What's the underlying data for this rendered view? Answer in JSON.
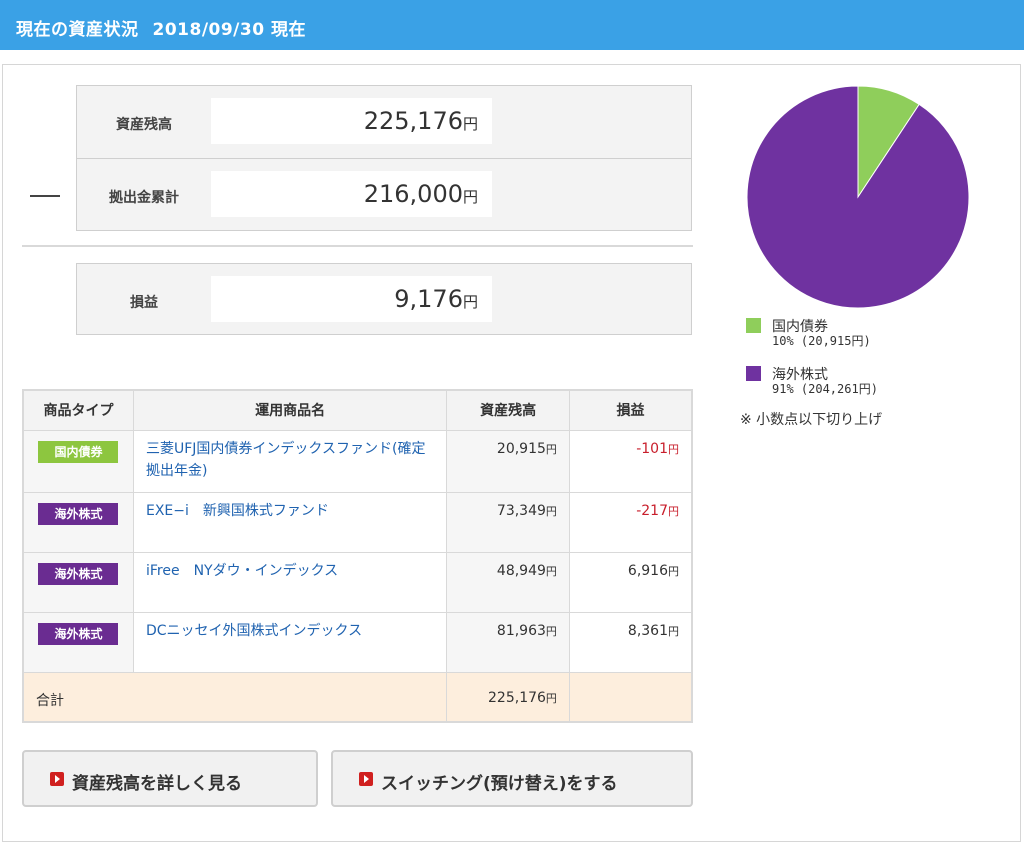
{
  "header": {
    "title": "現在の資産状況",
    "date": "2018/09/30 現在"
  },
  "summary": {
    "balance": {
      "label": "資産残高",
      "value": "225,176",
      "unit": "円"
    },
    "contribution": {
      "label": "拠出金累計",
      "value": "216,000",
      "unit": "円"
    },
    "profit": {
      "label": "損益",
      "value": "9,176",
      "unit": "円"
    }
  },
  "table": {
    "headers": [
      "商品タイプ",
      "運用商品名",
      "資産残高",
      "損益"
    ],
    "rows": [
      {
        "type": "国内債券",
        "type_color": "#8dc63f",
        "name": "三菱UFJ国内債券インデックスファンド(確定拠出年金)",
        "amount": "20,915",
        "profit": "-101",
        "negative": true
      },
      {
        "type": "海外株式",
        "type_color": "#6a2c91",
        "name": "EXE−i　新興国株式ファンド",
        "amount": "73,349",
        "profit": "-217",
        "negative": true
      },
      {
        "type": "海外株式",
        "type_color": "#6a2c91",
        "name": "iFree　NYダウ・インデックス",
        "amount": "48,949",
        "profit": "6,916",
        "negative": false
      },
      {
        "type": "海外株式",
        "type_color": "#6a2c91",
        "name": "DCニッセイ外国株式インデックス",
        "amount": "81,963",
        "profit": "8,361",
        "negative": false
      }
    ],
    "total": {
      "label": "合計",
      "amount": "225,176"
    },
    "unit": "円"
  },
  "buttons": {
    "details": "資産残高を詳しく見る",
    "switching": "スイッチング(預け替え)をする"
  },
  "chart_data": {
    "type": "pie",
    "slices": [
      {
        "name": "国内債券",
        "percent": 10,
        "amount_text": "10% (20,915円)",
        "value": 20915,
        "color": "#8fce5b"
      },
      {
        "name": "海外株式",
        "percent": 91,
        "amount_text": "91% (204,261円)",
        "value": 204261,
        "color": "#6f32a0"
      }
    ]
  },
  "note": "※ 小数点以下切り上げ"
}
